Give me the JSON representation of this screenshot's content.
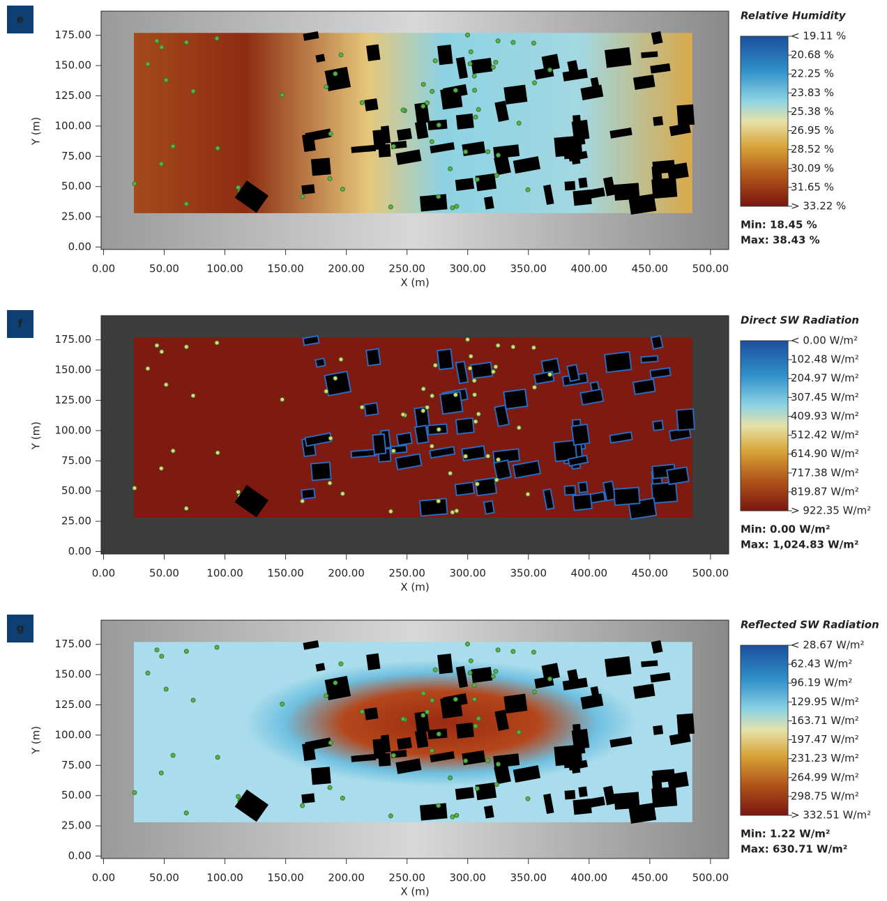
{
  "chart_data": [
    {
      "type": "map",
      "panel_label": "e",
      "title": "Relative Humidity",
      "xlabel": "X (m)",
      "ylabel": "Y (m)",
      "xlim": [
        -2,
        515
      ],
      "ylim": [
        -2,
        195
      ],
      "xticks": [
        {
          "value": 0,
          "label": "0.00"
        },
        {
          "value": 50,
          "label": "50.00"
        },
        {
          "value": 100,
          "label": "100.00"
        },
        {
          "value": 150,
          "label": "150.00"
        },
        {
          "value": 200,
          "label": "200.00"
        },
        {
          "value": 250,
          "label": "250.00"
        },
        {
          "value": 300,
          "label": "300.00"
        },
        {
          "value": 350,
          "label": "350.00"
        },
        {
          "value": 400,
          "label": "400.00"
        },
        {
          "value": 450,
          "label": "450.00"
        },
        {
          "value": 500,
          "label": "500.00"
        }
      ],
      "yticks": [
        {
          "value": 0,
          "label": "0.00"
        },
        {
          "value": 25,
          "label": "25.00"
        },
        {
          "value": 50,
          "label": "50.00"
        },
        {
          "value": 75,
          "label": "75.00"
        },
        {
          "value": 100,
          "label": "100.00"
        },
        {
          "value": 125,
          "label": "125.00"
        },
        {
          "value": 150,
          "label": "150.00"
        },
        {
          "value": 175,
          "label": "175.00"
        }
      ],
      "colorbar_labels": [
        "< 19.11 %",
        "20.68 %",
        "22.25 %",
        "23.83 %",
        "25.38 %",
        "26.95 %",
        "28.52 %",
        "30.09 %",
        "31.65 %",
        "> 33.22 %"
      ],
      "min_label": "Min: 18.45 %",
      "max_label": "Max: 38.43 %"
    },
    {
      "type": "map",
      "panel_label": "f",
      "title": "Direct SW Radiation",
      "xlabel": "X (m)",
      "ylabel": "Y (m)",
      "xlim": [
        -2,
        515
      ],
      "ylim": [
        -2,
        195
      ],
      "xticks": [
        {
          "value": 0,
          "label": "0.00"
        },
        {
          "value": 50,
          "label": "50.00"
        },
        {
          "value": 100,
          "label": "100.00"
        },
        {
          "value": 150,
          "label": "150.00"
        },
        {
          "value": 200,
          "label": "200.00"
        },
        {
          "value": 250,
          "label": "250.00"
        },
        {
          "value": 300,
          "label": "300.00"
        },
        {
          "value": 350,
          "label": "350.00"
        },
        {
          "value": 400,
          "label": "400.00"
        },
        {
          "value": 450,
          "label": "450.00"
        },
        {
          "value": 500,
          "label": "500.00"
        }
      ],
      "yticks": [
        {
          "value": 0,
          "label": "0.00"
        },
        {
          "value": 25,
          "label": "25.00"
        },
        {
          "value": 50,
          "label": "50.00"
        },
        {
          "value": 75,
          "label": "75.00"
        },
        {
          "value": 100,
          "label": "100.00"
        },
        {
          "value": 125,
          "label": "125.00"
        },
        {
          "value": 150,
          "label": "150.00"
        },
        {
          "value": 175,
          "label": "175.00"
        }
      ],
      "colorbar_labels": [
        "< 0.00 W/m²",
        "102.48 W/m²",
        "204.97 W/m²",
        "307.45 W/m²",
        "409.93 W/m²",
        "512.42 W/m²",
        "614.90 W/m²",
        "717.38 W/m²",
        "819.87 W/m²",
        "> 922.35 W/m²"
      ],
      "min_label": "Min: 0.00 W/m²",
      "max_label": "Max: 1,024.83 W/m²"
    },
    {
      "type": "map",
      "panel_label": "g",
      "title": "Reflected SW Radiation",
      "xlabel": "X (m)",
      "ylabel": "Y (m)",
      "xlim": [
        -2,
        515
      ],
      "ylim": [
        -2,
        195
      ],
      "xticks": [
        {
          "value": 0,
          "label": "0.00"
        },
        {
          "value": 50,
          "label": "50.00"
        },
        {
          "value": 100,
          "label": "100.00"
        },
        {
          "value": 150,
          "label": "150.00"
        },
        {
          "value": 200,
          "label": "200.00"
        },
        {
          "value": 250,
          "label": "250.00"
        },
        {
          "value": 300,
          "label": "300.00"
        },
        {
          "value": 350,
          "label": "350.00"
        },
        {
          "value": 400,
          "label": "400.00"
        },
        {
          "value": 450,
          "label": "450.00"
        },
        {
          "value": 500,
          "label": "500.00"
        }
      ],
      "yticks": [
        {
          "value": 0,
          "label": "0.00"
        },
        {
          "value": 25,
          "label": "25.00"
        },
        {
          "value": 50,
          "label": "50.00"
        },
        {
          "value": 75,
          "label": "75.00"
        },
        {
          "value": 100,
          "label": "100.00"
        },
        {
          "value": 125,
          "label": "125.00"
        },
        {
          "value": 150,
          "label": "150.00"
        },
        {
          "value": 175,
          "label": "175.00"
        }
      ],
      "colorbar_labels": [
        "< 28.67 W/m²",
        "62.43 W/m²",
        "96.19 W/m²",
        "129.95 W/m²",
        "163.71 W/m²",
        "197.47 W/m²",
        "231.23 W/m²",
        "264.99 W/m²",
        "298.75 W/m²",
        "> 332.51 W/m²"
      ],
      "min_label": "Min: 1.22 W/m²",
      "max_label": "Max: 630.71 W/m²"
    }
  ]
}
